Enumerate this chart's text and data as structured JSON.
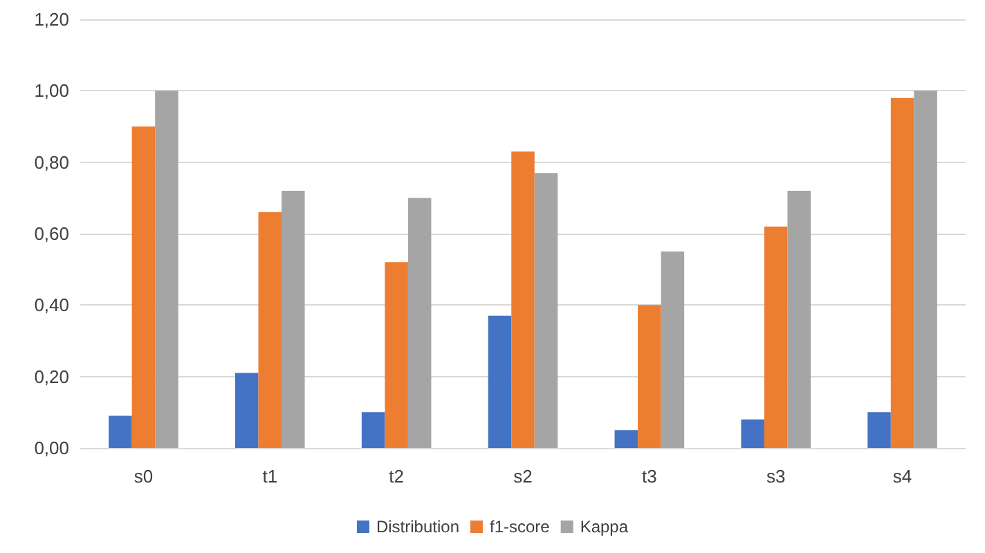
{
  "chart_data": {
    "type": "bar",
    "categories": [
      "s0",
      "t1",
      "t2",
      "s2",
      "t3",
      "s3",
      "s4"
    ],
    "series": [
      {
        "name": "Distribution",
        "color": "#4472c4",
        "values": [
          0.09,
          0.21,
          0.1,
          0.37,
          0.05,
          0.08,
          0.1
        ]
      },
      {
        "name": "f1-score",
        "color": "#ed7d31",
        "values": [
          0.9,
          0.66,
          0.52,
          0.83,
          0.4,
          0.62,
          0.98
        ]
      },
      {
        "name": "Kappa",
        "color": "#a5a5a5",
        "values": [
          1.0,
          0.72,
          0.7,
          0.77,
          0.55,
          0.72,
          1.0
        ]
      }
    ],
    "ylim": [
      0,
      1.2
    ],
    "yticks": [
      {
        "value": 0,
        "label": "0,00"
      },
      {
        "value": 0.2,
        "label": "0,20"
      },
      {
        "value": 0.4,
        "label": "0,40"
      },
      {
        "value": 0.6,
        "label": "0,60"
      },
      {
        "value": 0.8,
        "label": "0,80"
      },
      {
        "value": 1,
        "label": "1,00"
      },
      {
        "value": 1.2,
        "label": "1,20"
      }
    ],
    "grid": "y",
    "legend": "bottom"
  }
}
